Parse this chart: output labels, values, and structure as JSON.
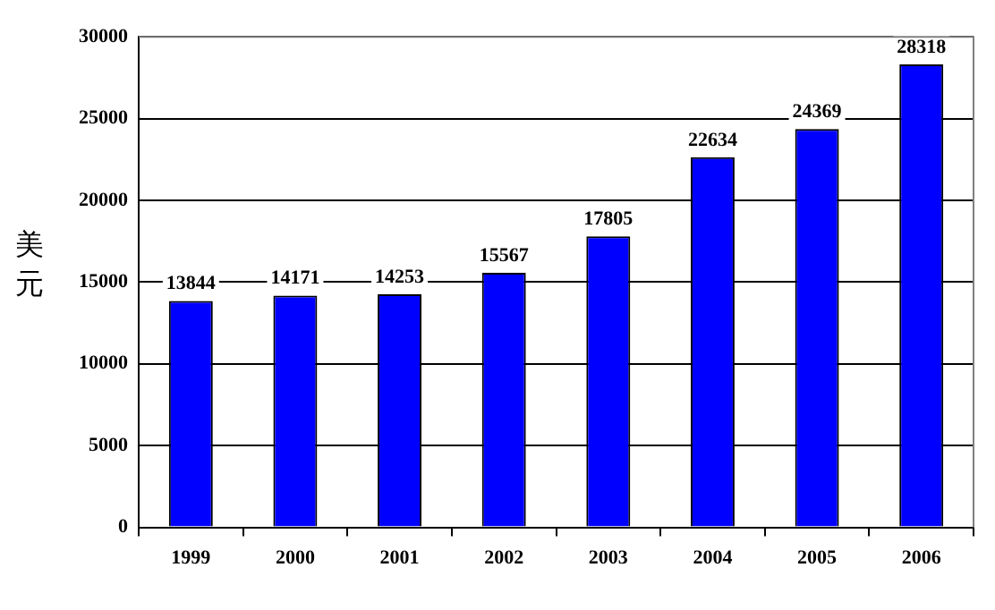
{
  "chart_data": {
    "type": "bar",
    "ylabel": "美元",
    "categories": [
      "1999",
      "2000",
      "2001",
      "2002",
      "2003",
      "2004",
      "2005",
      "2006"
    ],
    "values": [
      13844,
      14171,
      14253,
      15567,
      17805,
      22634,
      24369,
      28318
    ],
    "color": "#0000ff",
    "ylim": [
      0,
      30000
    ],
    "yticks": [
      0,
      5000,
      10000,
      15000,
      20000,
      25000,
      30000
    ],
    "grid": "y",
    "data_labels": true
  }
}
